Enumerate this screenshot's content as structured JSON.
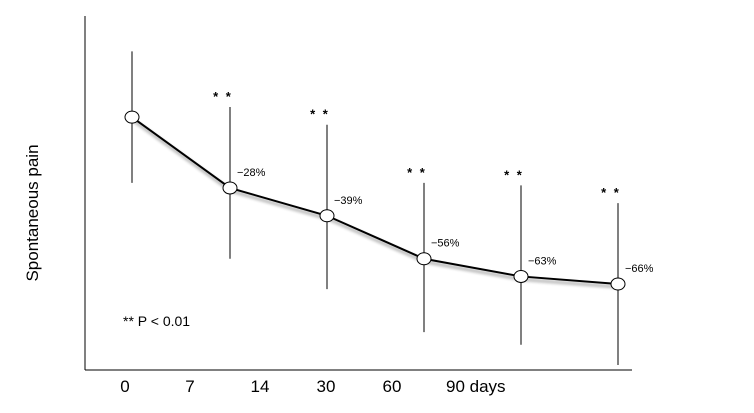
{
  "chart_data": {
    "type": "line",
    "title": "",
    "xlabel": "",
    "ylabel": "Spontaneous pain",
    "x_tick_labels": [
      "0",
      "7",
      "14",
      "30",
      "60",
      "90 days"
    ],
    "grid": false,
    "legend": "none",
    "note": "** P < 0.01",
    "series": [
      {
        "values": [
          100,
          72,
          61,
          44,
          37,
          34
        ],
        "error_low": [
          74,
          44,
          32,
          15,
          10,
          2
        ],
        "error_high": [
          126,
          104,
          97,
          74,
          73,
          66
        ],
        "pct_labels": [
          "",
          "−28%",
          "−39%",
          "−56%",
          "−63%",
          "−66%"
        ],
        "significance": [
          "",
          "* *",
          "* *",
          "* *",
          "* *",
          "* *"
        ]
      }
    ],
    "ylim": [
      0,
      140
    ],
    "line_color": "#000000",
    "marker_fill": "#ffffff"
  }
}
